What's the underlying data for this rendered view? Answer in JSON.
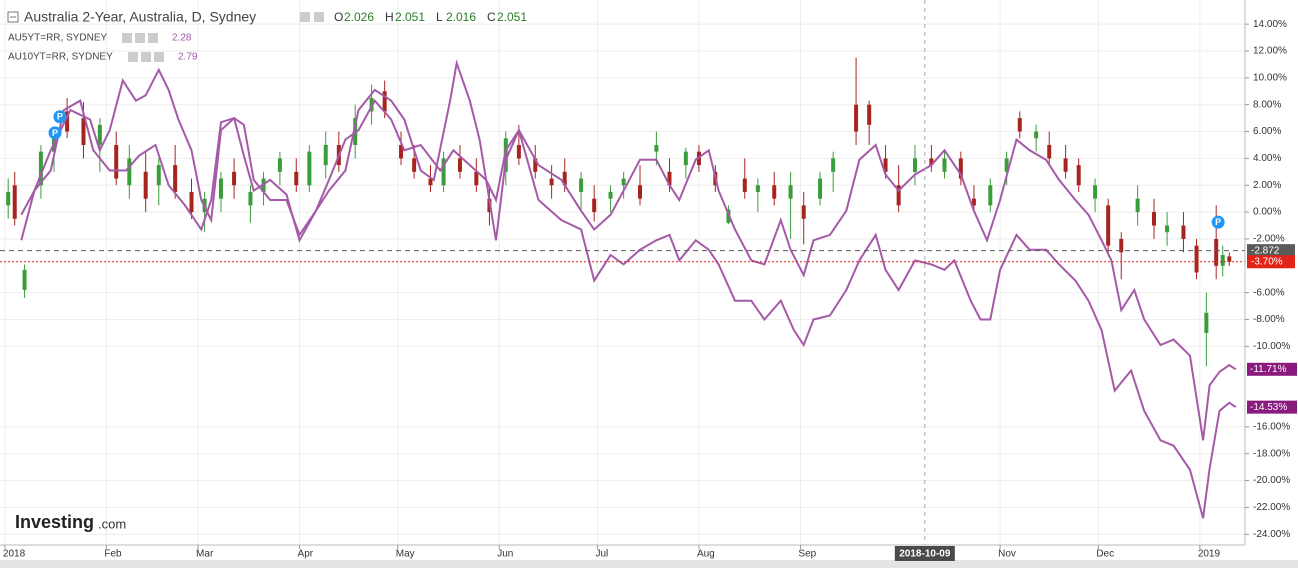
{
  "chart_data": {
    "type": "candlestick",
    "title": "Australia 2-Year, Australia, D, Sydney",
    "ohlc": [
      {
        "label": "O",
        "value": 2.026
      },
      {
        "label": "H",
        "value": 2.051
      },
      {
        "label": "L",
        "value": 2.016
      },
      {
        "label": "C",
        "value": 2.051
      }
    ],
    "up_color": "#3b9c3b",
    "down_color": "#a8241f",
    "x": [
      1,
      3,
      6,
      11,
      15,
      19,
      24,
      29,
      34,
      38,
      43,
      47,
      52,
      57,
      61,
      66,
      70,
      75,
      79,
      84,
      89,
      93,
      98,
      102,
      107,
      112,
      116,
      121,
      125,
      130,
      134,
      139,
      144,
      148,
      153,
      157,
      162,
      167,
      171,
      176,
      180,
      185,
      189,
      194,
      199,
      203,
      208,
      212,
      217,
      221,
      226,
      230,
      235,
      240,
      244,
      249,
      253,
      260,
      264,
      269,
      273,
      278,
      283,
      287,
      292,
      296,
      301,
      306,
      310,
      315,
      319,
      324,
      328,
      333,
      337,
      341,
      346,
      351,
      355,
      360,
      364,
      367,
      370,
      372,
      374
    ],
    "open": [
      0.5,
      2,
      -5.8,
      2,
      4.5,
      7.5,
      7,
      5,
      5,
      2,
      3,
      2,
      3.5,
      1.5,
      0,
      1,
      3,
      0.5,
      1.5,
      3,
      3,
      2,
      3.5,
      5,
      5,
      7.5,
      9,
      5,
      4,
      2.5,
      2,
      4,
      3,
      1,
      3,
      5,
      4,
      2.5,
      3,
      1.5,
      1,
      1,
      2,
      2,
      4.5,
      3,
      3.5,
      4.5,
      3,
      -0.8,
      2.5,
      1.5,
      2,
      1,
      0.5,
      1,
      3,
      8,
      8,
      4,
      2,
      3,
      4,
      3,
      4,
      1,
      0.5,
      3,
      7,
      5.5,
      5,
      4,
      3.5,
      1,
      0.5,
      -2,
      0,
      0,
      -1.5,
      -1,
      -2.5,
      -9,
      -2,
      -4,
      -3.3
    ],
    "high": [
      2.5,
      3,
      -3.9,
      5,
      6,
      8.5,
      8.2,
      7,
      6,
      5,
      4.5,
      4,
      5,
      2.5,
      1.5,
      3,
      4,
      2,
      3,
      4.5,
      4,
      5,
      6,
      6,
      8,
      9.5,
      9.8,
      6,
      5,
      3.5,
      4.5,
      5,
      4,
      2,
      6,
      6.5,
      5,
      3.5,
      4,
      3,
      2,
      2,
      3,
      3.5,
      6,
      4,
      4.8,
      5,
      3.5,
      0.5,
      4,
      2.5,
      3,
      3,
      1.5,
      3,
      4.5,
      11.5,
      8.3,
      5,
      3.5,
      5,
      5,
      4.5,
      4.5,
      2,
      2.5,
      4.5,
      7.5,
      6.5,
      6,
      5,
      4,
      2.5,
      1,
      -1.5,
      2,
      1,
      0,
      0,
      -2,
      -6,
      0.5,
      -2.5,
      -3
    ],
    "low": [
      -0.5,
      -1,
      -6.4,
      1,
      3,
      5.5,
      4,
      3,
      2,
      1,
      0,
      0.5,
      1,
      -0.5,
      -1.5,
      0,
      1,
      -0.8,
      0.5,
      2,
      1.5,
      1.5,
      2.5,
      3,
      4,
      6.5,
      7,
      3.5,
      2.5,
      1.5,
      1.5,
      2.5,
      1.5,
      -1,
      2,
      3.5,
      2.5,
      1,
      1.5,
      0,
      -0.7,
      0,
      1,
      0.5,
      3.5,
      1.5,
      2.5,
      3,
      1.5,
      -0.9,
      1,
      0,
      0.5,
      -2,
      -2.4,
      0.5,
      1.5,
      5,
      5,
      2.5,
      0,
      2,
      3,
      2.5,
      2,
      0,
      0,
      2,
      5.5,
      4.5,
      3.5,
      2.5,
      1.5,
      0,
      -3,
      -5,
      -1,
      -2,
      -2.5,
      -3,
      -5,
      -11.5,
      -5,
      -4.8,
      -4
    ],
    "close": [
      1.5,
      -0.5,
      -4.3,
      4.5,
      5.5,
      6,
      5,
      6.5,
      2.5,
      4,
      1,
      3.5,
      1.5,
      0,
      1,
      2.5,
      2,
      1.5,
      2.5,
      4,
      2,
      4.5,
      5,
      3.5,
      7,
      8.5,
      7.5,
      4,
      3,
      2,
      4,
      3,
      2,
      0,
      5.5,
      4,
      3,
      2,
      2,
      2.5,
      0,
      1.5,
      2.5,
      1,
      5,
      2,
      4.5,
      3.5,
      2,
      0.2,
      1.5,
      2,
      1,
      2,
      -0.5,
      2.5,
      4,
      6,
      6.5,
      3,
      0.5,
      4,
      3.5,
      4,
      2.5,
      0.5,
      2,
      4,
      6,
      6,
      4,
      3,
      2,
      2,
      -2.5,
      -3,
      1,
      -1,
      -1,
      -2,
      -4.5,
      -7.5,
      -4,
      -3.2,
      -3.7
    ],
    "series": [
      {
        "name": "AU5YT=RR, SYDNEY",
        "legend_value": 2.28,
        "color": "#a55aa8",
        "last_label": "-11.71%",
        "x": [
          5,
          9,
          14,
          18,
          23,
          27,
          32,
          37,
          41,
          46,
          50,
          55,
          60,
          63,
          66,
          70,
          73,
          76,
          81,
          86,
          90,
          95,
          99,
          104,
          108,
          113,
          118,
          122,
          127,
          133,
          137,
          142,
          147,
          150,
          153,
          157,
          163,
          170,
          176,
          180,
          185,
          189,
          194,
          199,
          203,
          206,
          211,
          215,
          218,
          223,
          228,
          232,
          237,
          240,
          244,
          247,
          252,
          257,
          261,
          266,
          269,
          273,
          278,
          283,
          287,
          292,
          296,
          300,
          304,
          309,
          313,
          318,
          322,
          327,
          331,
          335,
          338,
          341,
          345,
          348,
          353,
          357,
          362,
          366,
          368,
          371,
          374,
          376
        ],
        "values": [
          -0.2,
          1.6,
          3.1,
          7.6,
          8.3,
          4.6,
          3.1,
          3.1,
          4.2,
          5.0,
          2.0,
          0.5,
          -1.3,
          0.9,
          6.7,
          7.0,
          4.2,
          1.6,
          2.4,
          1.3,
          -2.1,
          0.1,
          2.4,
          5.4,
          6.1,
          8.3,
          6.9,
          4.6,
          5.0,
          3.1,
          4.6,
          3.5,
          2.4,
          0.9,
          4.6,
          6.1,
          3.5,
          2.4,
          0.1,
          -1.3,
          -0.2,
          1.6,
          3.9,
          3.9,
          2.0,
          0.9,
          3.9,
          4.6,
          1.6,
          -1.3,
          -3.6,
          -3.9,
          -0.6,
          -2.8,
          -4.7,
          -2.1,
          -1.7,
          0.1,
          3.9,
          5.0,
          2.8,
          1.6,
          2.8,
          3.5,
          4.6,
          2.8,
          0.1,
          -2.1,
          0.9,
          5.4,
          4.6,
          3.9,
          2.4,
          0.9,
          -0.2,
          -2.1,
          -3.6,
          -7.3,
          -5.8,
          -8.0,
          -9.9,
          -9.5,
          -10.7,
          -17.0,
          -12.9,
          -11.9,
          -11.4,
          -11.71
        ]
      },
      {
        "name": "AU10YT=RR, SYDNEY",
        "legend_value": 2.79,
        "color": "#a55aa8",
        "last_label": "-14.53%",
        "x": [
          5,
          9,
          14,
          20,
          26,
          29,
          32,
          36,
          40,
          43,
          47,
          50,
          53,
          57,
          60,
          63,
          66,
          70,
          73,
          76,
          81,
          86,
          90,
          95,
          99,
          104,
          108,
          113,
          118,
          122,
          127,
          131,
          136,
          138,
          142,
          145,
          148,
          150,
          153,
          157,
          163,
          170,
          176,
          180,
          185,
          189,
          194,
          199,
          203,
          206,
          211,
          215,
          218,
          223,
          228,
          232,
          237,
          241,
          244,
          247,
          252,
          257,
          261,
          266,
          269,
          273,
          278,
          283,
          287,
          290,
          295,
          298,
          301,
          304,
          309,
          313,
          318,
          322,
          327,
          331,
          335,
          339,
          344,
          348,
          353,
          357,
          362,
          366,
          368,
          371,
          374,
          376
        ],
        "values": [
          -2.1,
          1.6,
          4.6,
          7.6,
          6.9,
          4.6,
          6.1,
          9.8,
          8.3,
          8.7,
          10.6,
          9.1,
          6.9,
          4.6,
          0.9,
          -0.6,
          6.1,
          7.0,
          6.5,
          2.4,
          0.9,
          0.9,
          -1.7,
          0.1,
          1.6,
          3.1,
          7.6,
          9.1,
          8.3,
          6.9,
          3.1,
          2.4,
          8.3,
          11.1,
          8.3,
          5.4,
          0.9,
          -2.1,
          3.9,
          6.1,
          0.9,
          -0.6,
          -1.3,
          -5.1,
          -3.2,
          -3.9,
          -2.8,
          -2.1,
          -1.7,
          -3.6,
          -2.1,
          -2.8,
          -3.9,
          -6.6,
          -6.6,
          -8.0,
          -6.6,
          -8.8,
          -9.9,
          -8.0,
          -7.7,
          -5.8,
          -3.6,
          -1.7,
          -4.3,
          -5.8,
          -3.6,
          -3.9,
          -4.3,
          -3.6,
          -6.6,
          -8.0,
          -8.0,
          -4.3,
          -1.7,
          -2.8,
          -2.8,
          -3.9,
          -5.1,
          -6.6,
          -8.8,
          -13.3,
          -11.8,
          -14.8,
          -17.0,
          -17.4,
          -19.2,
          -22.8,
          -19.1,
          -14.8,
          -14.2,
          -14.53
        ]
      }
    ],
    "price_lines": [
      {
        "value": -2.872,
        "label": "-2.872",
        "color": "#5a5a5a",
        "dash": "5 4"
      },
      {
        "value": -3.7,
        "label": "-3.70%",
        "color": "#e2231a",
        "dash": "2 2"
      }
    ],
    "last_label_color": "#8a1a7e",
    "markers": [
      {
        "x": 16.8,
        "y": 7.1,
        "label": "P"
      },
      {
        "x": 15.3,
        "y": 5.9,
        "label": "P"
      },
      {
        "x": 370.6,
        "y": -0.75,
        "label": "P"
      }
    ],
    "marker_color": "#2196f3",
    "crosshair": {
      "x": 281,
      "label": "2018-10-09"
    },
    "xlim": [
      -1.5,
      378.8
    ],
    "ylim": [
      -24.8,
      15.8
    ],
    "xticks": [
      {
        "value": 0,
        "label": "2018"
      },
      {
        "value": 31,
        "label": "Feb"
      },
      {
        "value": 59,
        "label": "Mar"
      },
      {
        "value": 90,
        "label": "Apr"
      },
      {
        "value": 120,
        "label": "May"
      },
      {
        "value": 151,
        "label": "Jun"
      },
      {
        "value": 181,
        "label": "Jul"
      },
      {
        "value": 212,
        "label": "Aug"
      },
      {
        "value": 243,
        "label": "Sep"
      },
      {
        "value": 304,
        "label": "Nov"
      },
      {
        "value": 334,
        "label": "Dec"
      },
      {
        "value": 365,
        "label": "2019"
      }
    ],
    "yticks": [
      {
        "value": 14,
        "label": "14.00%"
      },
      {
        "value": 12,
        "label": "12.00%"
      },
      {
        "value": 10,
        "label": "10.00%"
      },
      {
        "value": 8,
        "label": "8.00%"
      },
      {
        "value": 6,
        "label": "6.00%"
      },
      {
        "value": 4,
        "label": "4.00%"
      },
      {
        "value": 2,
        "label": "2.00%"
      },
      {
        "value": 0,
        "label": "0.00%"
      },
      {
        "value": -2,
        "label": "-2.00%"
      },
      {
        "value": -6,
        "label": "-6.00%"
      },
      {
        "value": -8,
        "label": "-8.00%"
      },
      {
        "value": -10,
        "label": "-10.00%"
      },
      {
        "value": -16,
        "label": "-16.00%"
      },
      {
        "value": -18,
        "label": "-18.00%"
      },
      {
        "value": -20,
        "label": "-20.00%"
      },
      {
        "value": -22,
        "label": "-22.00%"
      },
      {
        "value": -24,
        "label": "-24.00%"
      }
    ],
    "grid": true
  },
  "logo": {
    "name": "Investing",
    "suffix": ".com"
  }
}
